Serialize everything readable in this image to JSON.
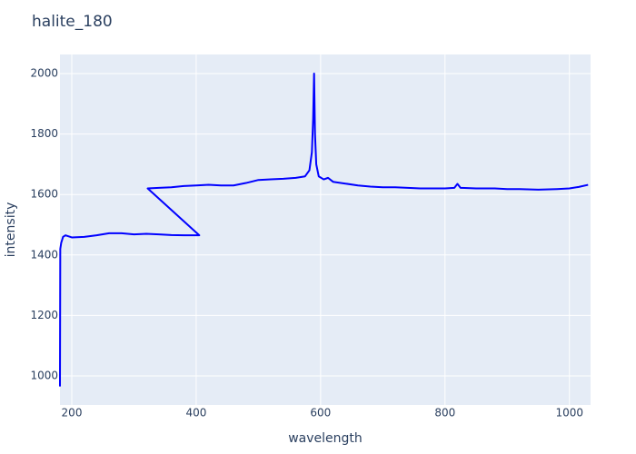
{
  "chart_data": {
    "type": "line",
    "title": "halite_180",
    "x_label": "wavelength",
    "y_label": "intensity",
    "x": [
      181,
      181.5,
      183,
      186,
      190,
      200,
      220,
      240,
      260,
      280,
      300,
      320,
      340,
      360,
      380,
      405,
      322,
      340,
      360,
      380,
      400,
      420,
      440,
      460,
      480,
      500,
      520,
      540,
      560,
      575,
      582,
      586,
      588,
      589.5,
      591,
      593,
      597,
      605,
      612,
      620,
      640,
      660,
      680,
      700,
      720,
      740,
      760,
      780,
      800,
      815,
      820,
      825,
      850,
      880,
      900,
      920,
      950,
      980,
      1000,
      1015,
      1030
    ],
    "values": [
      965,
      1420,
      1440,
      1460,
      1465,
      1458,
      1460,
      1465,
      1472,
      1472,
      1468,
      1470,
      1468,
      1466,
      1465,
      1465,
      1620,
      1622,
      1624,
      1628,
      1630,
      1632,
      1630,
      1630,
      1638,
      1648,
      1650,
      1652,
      1655,
      1660,
      1680,
      1740,
      1850,
      2000,
      1800,
      1700,
      1660,
      1650,
      1655,
      1642,
      1636,
      1630,
      1626,
      1624,
      1624,
      1622,
      1620,
      1620,
      1620,
      1622,
      1635,
      1622,
      1620,
      1620,
      1618,
      1618,
      1616,
      1618,
      1620,
      1625,
      1632
    ],
    "color": "#0000ff",
    "xlim": [
      181,
      1034
    ],
    "xticks": [
      200,
      400,
      600,
      800,
      1000
    ],
    "ylim": [
      904,
      2063
    ],
    "yticks": [
      1000,
      1200,
      1400,
      1600,
      1800,
      2000
    ],
    "grid": true
  }
}
